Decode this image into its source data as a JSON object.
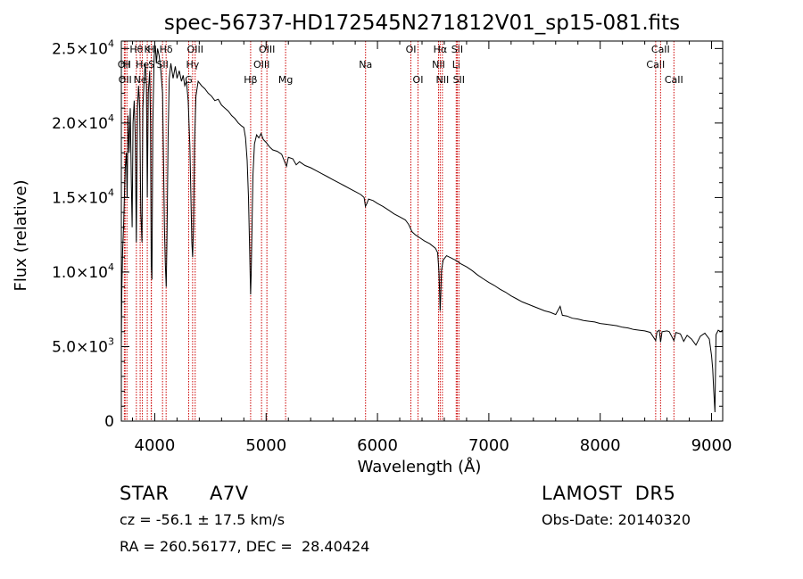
{
  "chart_data": {
    "type": "line",
    "title": "spec-56737-HD172545N271812V01_sp15-081.fits",
    "xlabel": "Wavelength (Å)",
    "ylabel": "Flux (relative)",
    "xlim": [
      3700,
      9100
    ],
    "ylim": [
      0,
      25500
    ],
    "x_ticks": [
      {
        "value": 4000,
        "label": "4000"
      },
      {
        "value": 5000,
        "label": "5000"
      },
      {
        "value": 6000,
        "label": "6000"
      },
      {
        "value": 7000,
        "label": "7000"
      },
      {
        "value": 8000,
        "label": "8000"
      },
      {
        "value": 9000,
        "label": "9000"
      }
    ],
    "y_ticks": [
      {
        "value": 0,
        "mant": "0",
        "exp": ""
      },
      {
        "value": 5000,
        "mant": "5.0×10",
        "exp": "3"
      },
      {
        "value": 10000,
        "mant": "1.0×10",
        "exp": "4"
      },
      {
        "value": 15000,
        "mant": "1.5×10",
        "exp": "4"
      },
      {
        "value": 20000,
        "mant": "2.0×10",
        "exp": "4"
      },
      {
        "value": 25000,
        "mant": "2.5×10",
        "exp": "4"
      }
    ],
    "grid": false,
    "series": [
      {
        "line_color": "#000000",
        "points": [
          [
            3700,
            5000
          ],
          [
            3705,
            9000
          ],
          [
            3712,
            11500
          ],
          [
            3720,
            13000
          ],
          [
            3728,
            15200
          ],
          [
            3735,
            17000
          ],
          [
            3745,
            18000
          ],
          [
            3752,
            15000
          ],
          [
            3760,
            20500
          ],
          [
            3770,
            18000
          ],
          [
            3780,
            21000
          ],
          [
            3790,
            16000
          ],
          [
            3797,
            13000
          ],
          [
            3805,
            20000
          ],
          [
            3815,
            21500
          ],
          [
            3825,
            19000
          ],
          [
            3835,
            12000
          ],
          [
            3845,
            21000
          ],
          [
            3855,
            22500
          ],
          [
            3865,
            21000
          ],
          [
            3875,
            14000
          ],
          [
            3885,
            12000
          ],
          [
            3893,
            21000
          ],
          [
            3905,
            23000
          ],
          [
            3915,
            24000
          ],
          [
            3925,
            22500
          ],
          [
            3933,
            15000
          ],
          [
            3942,
            22000
          ],
          [
            3955,
            23500
          ],
          [
            3962,
            20000
          ],
          [
            3968,
            10500
          ],
          [
            3975,
            9500
          ],
          [
            3983,
            20000
          ],
          [
            3995,
            24500
          ],
          [
            4005,
            25200
          ],
          [
            4015,
            24000
          ],
          [
            4025,
            25000
          ],
          [
            4040,
            24500
          ],
          [
            4055,
            23500
          ],
          [
            4070,
            22000
          ],
          [
            4080,
            17000
          ],
          [
            4087,
            13000
          ],
          [
            4095,
            10500
          ],
          [
            4103,
            9000
          ],
          [
            4110,
            12500
          ],
          [
            4120,
            19000
          ],
          [
            4130,
            23000
          ],
          [
            4145,
            24000
          ],
          [
            4165,
            23000
          ],
          [
            4185,
            23800
          ],
          [
            4200,
            23000
          ],
          [
            4220,
            23500
          ],
          [
            4240,
            22800
          ],
          [
            4255,
            23200
          ],
          [
            4270,
            22500
          ],
          [
            4285,
            22800
          ],
          [
            4300,
            21500
          ],
          [
            4315,
            18500
          ],
          [
            4325,
            15000
          ],
          [
            4333,
            12000
          ],
          [
            4340,
            11000
          ],
          [
            4348,
            13000
          ],
          [
            4357,
            18500
          ],
          [
            4370,
            21800
          ],
          [
            4390,
            22800
          ],
          [
            4420,
            22500
          ],
          [
            4450,
            22300
          ],
          [
            4480,
            22000
          ],
          [
            4510,
            21800
          ],
          [
            4540,
            21500
          ],
          [
            4570,
            21600
          ],
          [
            4600,
            21200
          ],
          [
            4630,
            21000
          ],
          [
            4660,
            20800
          ],
          [
            4690,
            20500
          ],
          [
            4720,
            20300
          ],
          [
            4750,
            20000
          ],
          [
            4780,
            19800
          ],
          [
            4800,
            19700
          ],
          [
            4815,
            19000
          ],
          [
            4830,
            17500
          ],
          [
            4842,
            15000
          ],
          [
            4852,
            11500
          ],
          [
            4858,
            9500
          ],
          [
            4861,
            8500
          ],
          [
            4866,
            9800
          ],
          [
            4872,
            12500
          ],
          [
            4882,
            16500
          ],
          [
            4895,
            18600
          ],
          [
            4915,
            19200
          ],
          [
            4935,
            19000
          ],
          [
            4955,
            19300
          ],
          [
            4975,
            18900
          ],
          [
            5000,
            18700
          ],
          [
            5030,
            18400
          ],
          [
            5060,
            18200
          ],
          [
            5100,
            18100
          ],
          [
            5140,
            17900
          ],
          [
            5172,
            17300
          ],
          [
            5183,
            17100
          ],
          [
            5200,
            17700
          ],
          [
            5240,
            17600
          ],
          [
            5270,
            17200
          ],
          [
            5300,
            17400
          ],
          [
            5350,
            17150
          ],
          [
            5400,
            17000
          ],
          [
            5450,
            16800
          ],
          [
            5500,
            16600
          ],
          [
            5550,
            16400
          ],
          [
            5600,
            16200
          ],
          [
            5650,
            16000
          ],
          [
            5700,
            15800
          ],
          [
            5750,
            15600
          ],
          [
            5800,
            15400
          ],
          [
            5850,
            15200
          ],
          [
            5880,
            15000
          ],
          [
            5892,
            14400
          ],
          [
            5905,
            14600
          ],
          [
            5920,
            14900
          ],
          [
            5960,
            14800
          ],
          [
            6000,
            14600
          ],
          [
            6050,
            14400
          ],
          [
            6100,
            14150
          ],
          [
            6150,
            13900
          ],
          [
            6200,
            13700
          ],
          [
            6250,
            13500
          ],
          [
            6280,
            13200
          ],
          [
            6310,
            12700
          ],
          [
            6340,
            12500
          ],
          [
            6380,
            12300
          ],
          [
            6420,
            12100
          ],
          [
            6470,
            11900
          ],
          [
            6520,
            11600
          ],
          [
            6540,
            11300
          ],
          [
            6552,
            10000
          ],
          [
            6558,
            8700
          ],
          [
            6563,
            7400
          ],
          [
            6568,
            8500
          ],
          [
            6575,
            10100
          ],
          [
            6590,
            10800
          ],
          [
            6620,
            11100
          ],
          [
            6660,
            10950
          ],
          [
            6700,
            10800
          ],
          [
            6750,
            10550
          ],
          [
            6800,
            10350
          ],
          [
            6850,
            10100
          ],
          [
            6900,
            9800
          ],
          [
            6950,
            9550
          ],
          [
            7000,
            9300
          ],
          [
            7050,
            9100
          ],
          [
            7100,
            8850
          ],
          [
            7150,
            8650
          ],
          [
            7200,
            8400
          ],
          [
            7250,
            8200
          ],
          [
            7300,
            8000
          ],
          [
            7350,
            7850
          ],
          [
            7400,
            7700
          ],
          [
            7450,
            7550
          ],
          [
            7500,
            7400
          ],
          [
            7550,
            7300
          ],
          [
            7600,
            7150
          ],
          [
            7640,
            7700
          ],
          [
            7660,
            7100
          ],
          [
            7700,
            7050
          ],
          [
            7750,
            6900
          ],
          [
            7800,
            6850
          ],
          [
            7850,
            6750
          ],
          [
            7900,
            6700
          ],
          [
            7950,
            6650
          ],
          [
            8000,
            6550
          ],
          [
            8050,
            6500
          ],
          [
            8100,
            6450
          ],
          [
            8150,
            6400
          ],
          [
            8200,
            6300
          ],
          [
            8250,
            6250
          ],
          [
            8300,
            6150
          ],
          [
            8350,
            6100
          ],
          [
            8400,
            6050
          ],
          [
            8450,
            5950
          ],
          [
            8498,
            5400
          ],
          [
            8510,
            6000
          ],
          [
            8530,
            6100
          ],
          [
            8542,
            5300
          ],
          [
            8555,
            6000
          ],
          [
            8600,
            6050
          ],
          [
            8620,
            6000
          ],
          [
            8662,
            5400
          ],
          [
            8680,
            5950
          ],
          [
            8720,
            5850
          ],
          [
            8750,
            5350
          ],
          [
            8780,
            5750
          ],
          [
            8820,
            5500
          ],
          [
            8860,
            5100
          ],
          [
            8900,
            5700
          ],
          [
            8940,
            5900
          ],
          [
            8980,
            5500
          ],
          [
            9000,
            4400
          ],
          [
            9010,
            3500
          ],
          [
            9020,
            2000
          ],
          [
            9030,
            600
          ],
          [
            9040,
            5800
          ],
          [
            9060,
            6100
          ],
          [
            9080,
            6000
          ],
          [
            9100,
            6100
          ]
        ]
      }
    ],
    "line_markers": {
      "color": "#cc0000",
      "lines": [
        {
          "wavelength": 3727,
          "label": "OII",
          "row": 1
        },
        {
          "wavelength": 3734,
          "label": "OII",
          "row": 2
        },
        {
          "wavelength": 3750,
          "label": "H",
          "row": 1
        },
        {
          "wavelength": 3835,
          "label": "Hθ",
          "row": 0
        },
        {
          "wavelength": 3869,
          "label": "Ne",
          "row": 2
        },
        {
          "wavelength": 3889,
          "label": "He",
          "row": 1
        },
        {
          "wavelength": 3933,
          "label": "K",
          "row": 0
        },
        {
          "wavelength": 3968,
          "label": "H",
          "row": 0
        },
        {
          "wavelength": 3970,
          "label": "S",
          "row": 1
        },
        {
          "wavelength": 4070,
          "label": "SII",
          "row": 1
        },
        {
          "wavelength": 4102,
          "label": "Hδ",
          "row": 0
        },
        {
          "wavelength": 4305,
          "label": "G",
          "row": 2
        },
        {
          "wavelength": 4340,
          "label": "Hγ",
          "row": 1
        },
        {
          "wavelength": 4363,
          "label": "OIII",
          "row": 0
        },
        {
          "wavelength": 4861,
          "label": "Hβ",
          "row": 2
        },
        {
          "wavelength": 4959,
          "label": "OIII",
          "row": 1
        },
        {
          "wavelength": 5007,
          "label": "OIII",
          "row": 0
        },
        {
          "wavelength": 5175,
          "label": "Mg",
          "row": 2
        },
        {
          "wavelength": 5893,
          "label": "Na",
          "row": 1
        },
        {
          "wavelength": 6300,
          "label": "OI",
          "row": 0
        },
        {
          "wavelength": 6364,
          "label": "OI",
          "row": 2
        },
        {
          "wavelength": 6548,
          "label": "NII",
          "row": 1
        },
        {
          "wavelength": 6563,
          "label": "Hα",
          "row": 0
        },
        {
          "wavelength": 6583,
          "label": "NII",
          "row": 2
        },
        {
          "wavelength": 6707,
          "label": "Li",
          "row": 1
        },
        {
          "wavelength": 6716,
          "label": "SII",
          "row": 0
        },
        {
          "wavelength": 6731,
          "label": "SII",
          "row": 2
        },
        {
          "wavelength": 8498,
          "label": "CaII",
          "row": 1
        },
        {
          "wavelength": 8542,
          "label": "CaII",
          "row": 0
        },
        {
          "wavelength": 8662,
          "label": "CaII",
          "row": 2
        }
      ]
    }
  },
  "info": {
    "object_class": "STAR",
    "subclass": "A7V",
    "redshift_text": "cz = -56.1 ± 17.5 km/s",
    "coordinates_text": "RA = 260.56177, DEC =  28.40424",
    "survey": "LAMOST  DR5",
    "obs_date_text": "Obs-Date: 20140320"
  }
}
